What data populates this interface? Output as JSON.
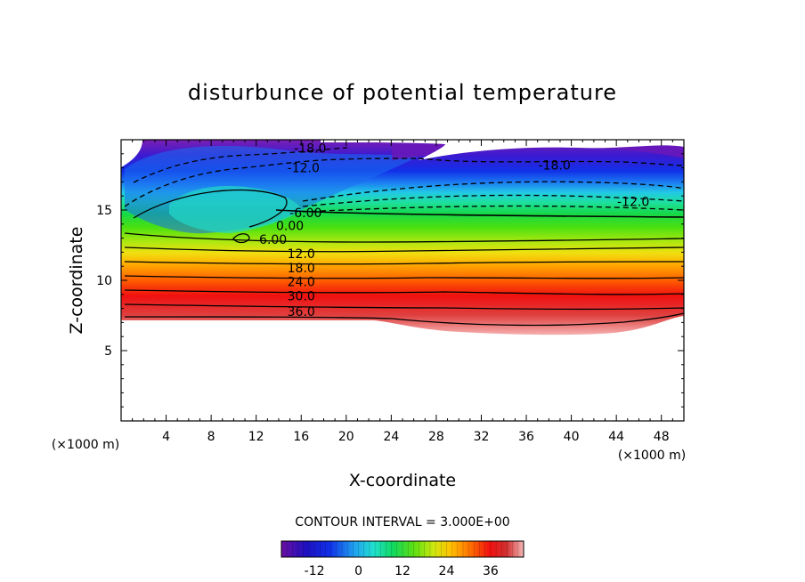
{
  "chart_data": {
    "type": "heatmap",
    "title": "disturbunce of potential temperature",
    "xlabel": "X-coordinate",
    "ylabel": "Z-coordinate",
    "x_unit": "(×1000 m)",
    "z_unit": "(×1000 m)",
    "xlim": [
      0,
      50
    ],
    "ylim": [
      0,
      20
    ],
    "x_ticks": [
      4,
      8,
      12,
      16,
      20,
      24,
      28,
      32,
      36,
      40,
      44,
      48
    ],
    "y_ticks": [
      5,
      10,
      15
    ],
    "contour_interval_text": "CONTOUR INTERVAL = 3.000E+00",
    "contour_labels": [
      {
        "text": "-18.0",
        "x": 16.8,
        "z": 19.4
      },
      {
        "text": "-12.0",
        "x": 16.2,
        "z": 18.0
      },
      {
        "text": "-18.0",
        "x": 38.5,
        "z": 18.2
      },
      {
        "text": "-12.0",
        "x": 45.5,
        "z": 15.6
      },
      {
        "text": "-6.00",
        "x": 16.4,
        "z": 14.8
      },
      {
        "text": "0.00",
        "x": 15.0,
        "z": 13.9
      },
      {
        "text": "6.00",
        "x": 13.5,
        "z": 12.9
      },
      {
        "text": "12.0",
        "x": 16.0,
        "z": 11.9
      },
      {
        "text": "18.0",
        "x": 16.0,
        "z": 10.9
      },
      {
        "text": "24.0",
        "x": 16.0,
        "z": 9.9
      },
      {
        "text": "30.0",
        "x": 16.0,
        "z": 8.9
      },
      {
        "text": "36.0",
        "x": 16.0,
        "z": 7.8
      }
    ],
    "colorbar": {
      "range": [
        -21,
        45
      ],
      "tick_labels": [
        "-12",
        "0",
        "12",
        "24",
        "36"
      ],
      "tick_values": [
        -12,
        0,
        12,
        24,
        36
      ]
    },
    "field_description_values": {
      "bottom_boundary_z": 7.0,
      "top_anomaly_min": -21,
      "bottom_anomaly_max": 45
    }
  }
}
